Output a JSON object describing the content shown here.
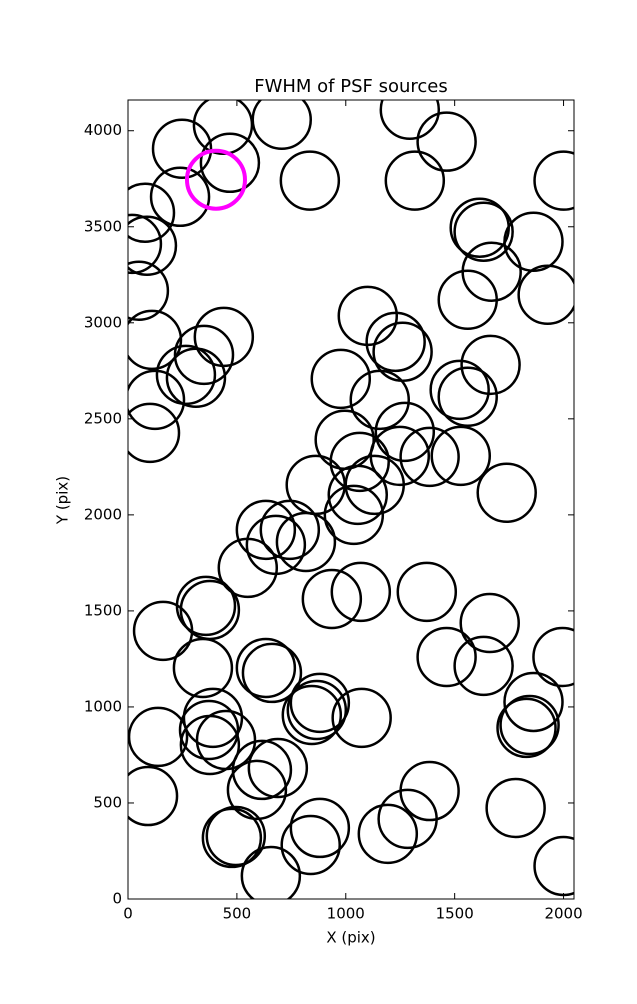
{
  "chart_data": {
    "type": "scatter",
    "title": "FWHM of PSF sources",
    "x_label": "X (pix)",
    "y_label": "Y (pix)",
    "xlim": [
      0,
      2048
    ],
    "ylim": [
      0,
      4160
    ],
    "xticks": [
      0,
      500,
      1000,
      1500,
      2000
    ],
    "yticks": [
      0,
      500,
      1000,
      1500,
      2000,
      2500,
      3000,
      3500,
      4000
    ],
    "grid": false,
    "points": {
      "color": "#000000",
      "x": [
        436,
        706,
        1294,
        1463,
        248,
        468,
        835,
        1317,
        2000,
        78,
        239,
        87,
        18,
        50,
        1633,
        1615,
        1862,
        1670,
        1560,
        1927,
        1101,
        1229,
        1261,
        440,
        110,
        349,
        266,
        312,
        1665,
        977,
        1523,
        1560,
        1156,
        124,
        101,
        995,
        1271,
        1248,
        1385,
        1528,
        1064,
        1133,
        1055,
        862,
        1037,
        1739,
        633,
        743,
        679,
        817,
        550,
        358,
        376,
        161,
        936,
        1069,
        1372,
        1661,
        1463,
        1633,
        1995,
        344,
        633,
        661,
        1862,
        1830,
        1844,
        881,
        844,
        867,
        1073,
        390,
        372,
        376,
        450,
        138,
        688,
        615,
        592,
        1385,
        92,
        1780,
        1284,
        881,
        839,
        1193,
        495,
        477,
        656,
        2000
      ],
      "y": [
        4031,
        4057,
        4109,
        3943,
        3906,
        3833,
        3740,
        3740,
        3740,
        3573,
        3656,
        3401,
        3411,
        3167,
        3474,
        3495,
        3422,
        3266,
        3120,
        3146,
        3036,
        2901,
        2849,
        2927,
        2911,
        2833,
        2729,
        2714,
        2781,
        2708,
        2651,
        2615,
        2599,
        2599,
        2427,
        2391,
        2432,
        2307,
        2302,
        2307,
        2276,
        2156,
        2104,
        2156,
        2000,
        2115,
        1922,
        1922,
        1844,
        1859,
        1724,
        1526,
        1505,
        1396,
        1562,
        1599,
        1599,
        1437,
        1260,
        1214,
        1260,
        1203,
        1203,
        1177,
        1026,
        891,
        906,
        1021,
        958,
        984,
        943,
        943,
        880,
        802,
        828,
        844,
        682,
        672,
        568,
        562,
        536,
        474,
        417,
        370,
        281,
        339,
        328,
        318,
        120,
        172
      ]
    },
    "highlight": {
      "color": "#ff00ff",
      "x": [
        404
      ],
      "y": [
        3745
      ]
    }
  }
}
